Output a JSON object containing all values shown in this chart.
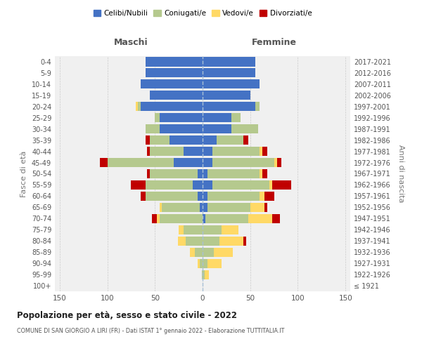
{
  "age_groups": [
    "100+",
    "95-99",
    "90-94",
    "85-89",
    "80-84",
    "75-79",
    "70-74",
    "65-69",
    "60-64",
    "55-59",
    "50-54",
    "45-49",
    "40-44",
    "35-39",
    "30-34",
    "25-29",
    "20-24",
    "15-19",
    "10-14",
    "5-9",
    "0-4"
  ],
  "birth_years": [
    "≤ 1921",
    "1922-1926",
    "1927-1931",
    "1932-1936",
    "1937-1941",
    "1942-1946",
    "1947-1951",
    "1952-1956",
    "1957-1961",
    "1962-1966",
    "1967-1971",
    "1972-1976",
    "1977-1981",
    "1982-1986",
    "1987-1991",
    "1992-1996",
    "1997-2001",
    "2002-2006",
    "2007-2011",
    "2012-2016",
    "2017-2021"
  ],
  "male": {
    "celibi": [
      0,
      0,
      0,
      0,
      0,
      0,
      0,
      3,
      5,
      10,
      5,
      30,
      20,
      35,
      45,
      45,
      65,
      55,
      65,
      60,
      60
    ],
    "coniugati": [
      0,
      1,
      3,
      8,
      18,
      20,
      45,
      40,
      55,
      50,
      50,
      70,
      35,
      20,
      15,
      5,
      3,
      0,
      0,
      0,
      0
    ],
    "vedovi": [
      0,
      0,
      2,
      5,
      8,
      5,
      3,
      2,
      0,
      0,
      0,
      0,
      0,
      0,
      0,
      0,
      2,
      0,
      0,
      0,
      0
    ],
    "divorziati": [
      0,
      0,
      0,
      0,
      0,
      0,
      5,
      0,
      5,
      15,
      3,
      8,
      3,
      5,
      0,
      0,
      0,
      0,
      0,
      0,
      0
    ]
  },
  "female": {
    "nubili": [
      0,
      0,
      0,
      0,
      0,
      0,
      3,
      5,
      5,
      10,
      5,
      10,
      10,
      15,
      30,
      30,
      55,
      50,
      60,
      55,
      55
    ],
    "coniugate": [
      0,
      2,
      5,
      12,
      18,
      20,
      45,
      45,
      55,
      60,
      55,
      65,
      50,
      28,
      28,
      10,
      5,
      0,
      0,
      0,
      0
    ],
    "vedove": [
      0,
      5,
      15,
      20,
      25,
      18,
      25,
      15,
      5,
      3,
      3,
      3,
      3,
      0,
      0,
      0,
      0,
      0,
      0,
      0,
      0
    ],
    "divorziate": [
      0,
      0,
      0,
      0,
      3,
      0,
      8,
      3,
      10,
      20,
      5,
      5,
      5,
      5,
      0,
      0,
      0,
      0,
      0,
      0,
      0
    ]
  },
  "colors": {
    "celibi": "#4472c4",
    "coniugati": "#b5c98e",
    "vedovi": "#ffd966",
    "divorziati": "#c00000"
  },
  "title": "Popolazione per età, sesso e stato civile - 2022",
  "subtitle": "COMUNE DI SAN GIORGIO A LIRI (FR) - Dati ISTAT 1° gennaio 2022 - Elaborazione TUTTITALIA.IT",
  "xlabel_left": "Maschi",
  "xlabel_right": "Femmine",
  "ylabel_left": "Fasce di età",
  "ylabel_right": "Anni di nascita",
  "legend_labels": [
    "Celibi/Nubili",
    "Coniugati/e",
    "Vedovi/e",
    "Divorziati/e"
  ],
  "xlim": 155,
  "background_color": "#ffffff",
  "plot_bg": "#f0f0f0"
}
